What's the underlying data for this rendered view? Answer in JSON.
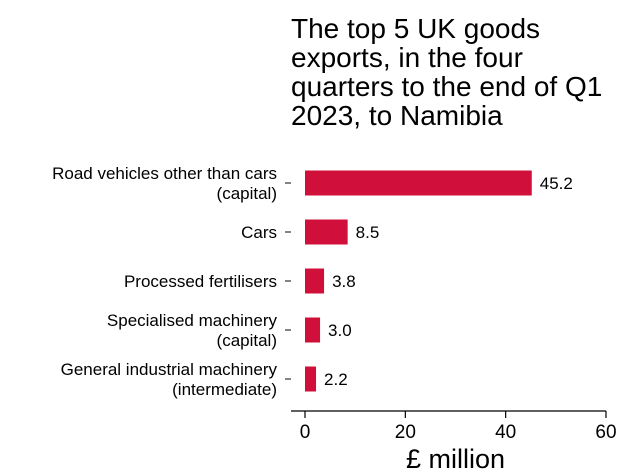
{
  "chart_data": {
    "type": "bar",
    "orientation": "horizontal",
    "title_lines": [
      "The top 5 UK goods",
      "exports, in the four",
      "quarters to the end of Q1",
      "2023, to Namibia"
    ],
    "categories": [
      [
        "Road vehicles other than cars",
        "(capital)"
      ],
      [
        "Cars"
      ],
      [
        "Processed fertilisers"
      ],
      [
        "Specialised machinery",
        "(capital)"
      ],
      [
        "General industrial machinery",
        "(intermediate)"
      ]
    ],
    "values": [
      45.2,
      8.5,
      3.8,
      3.0,
      2.2
    ],
    "value_labels": [
      "45.2",
      "8.5",
      "3.8",
      "3.0",
      "2.2"
    ],
    "xlabel": "£ million",
    "ylabel": "",
    "xlim": [
      0,
      60
    ],
    "xticks": [
      0,
      20,
      40,
      60
    ],
    "xtick_labels": [
      "0",
      "20",
      "40",
      "60"
    ],
    "grid": false,
    "bar_color": "#d0103a"
  }
}
